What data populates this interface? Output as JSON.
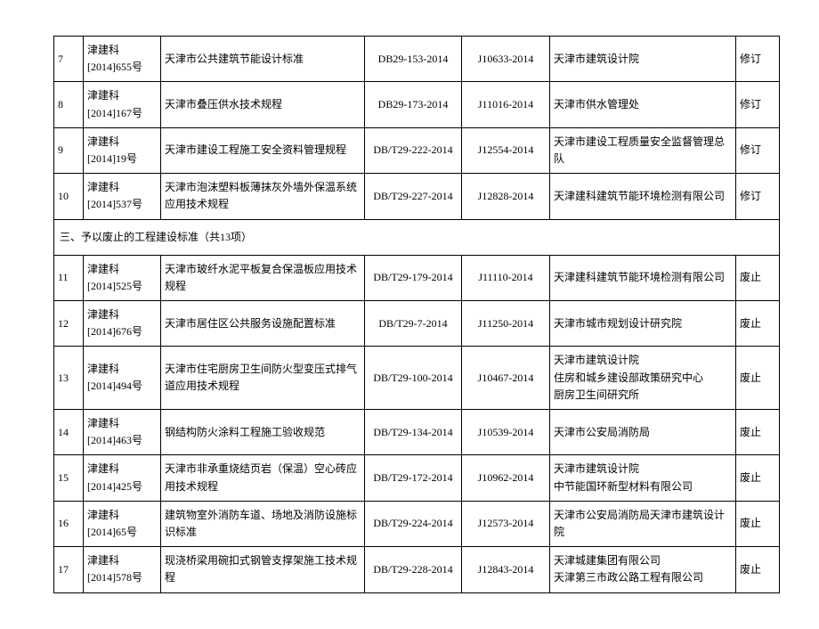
{
  "section_header": "三、予以废止的工程建设标准（共13项）",
  "rows_top": [
    {
      "idx": "7",
      "doc": "津建科[2014]655号",
      "title": "天津市公共建筑节能设计标准",
      "std1": "DB29-153-2014",
      "std2": "J10633-2014",
      "org": "天津市建筑设计院",
      "status": "修订"
    },
    {
      "idx": "8",
      "doc": "津建科[2014]167号",
      "title": "天津市叠压供水技术规程",
      "std1": "DB29-173-2014",
      "std2": "J11016-2014",
      "org": "天津市供水管理处",
      "status": "修订"
    },
    {
      "idx": "9",
      "doc": "津建科[2014]19号",
      "title": "天津市建设工程施工安全资料管理规程",
      "std1": "DB/T29-222-2014",
      "std2": "J12554-2014",
      "org": "天津市建设工程质量安全监督管理总队",
      "status": "修订"
    },
    {
      "idx": "10",
      "doc": "津建科[2014]537号",
      "title": "天津市泡沫塑料板薄抹灰外墙外保温系统应用技术规程",
      "std1": "DB/T29-227-2014",
      "std2": "J12828-2014",
      "org": "天津建科建筑节能环境检测有限公司",
      "status": "修订"
    }
  ],
  "rows_bottom": [
    {
      "idx": "11",
      "doc": "津建科[2014]525号",
      "title": "天津市玻纤水泥平板复合保温板应用技术规程",
      "std1": "DB/T29-179-2014",
      "std2": "J11110-2014",
      "org": "天津建科建筑节能环境检测有限公司",
      "status": "废止"
    },
    {
      "idx": "12",
      "doc": "津建科[2014]676号",
      "title": "天津市居住区公共服务设施配置标准",
      "std1": "DB/T29-7-2014",
      "std2": "J11250-2014",
      "org": "天津市城市规划设计研究院",
      "status": "废止"
    },
    {
      "idx": "13",
      "doc": "津建科[2014]494号",
      "title": "天津市住宅厨房卫生间防火型变压式排气道应用技术规程",
      "std1": "DB/T29-100-2014",
      "std2": "J10467-2014",
      "org": "天津市建筑设计院\n住房和城乡建设部政策研究中心\n厨房卫生间研究所",
      "status": "废止"
    },
    {
      "idx": "14",
      "doc": "津建科[2014]463号",
      "title": "钢结构防火涂料工程施工验收规范",
      "std1": "DB/T29-134-2014",
      "std2": "J10539-2014",
      "org": "天津市公安局消防局",
      "status": "废止"
    },
    {
      "idx": "15",
      "doc": "津建科[2014]425号",
      "title": "天津市非承重烧结页岩（保温）空心砖应用技术规程",
      "std1": "DB/T29-172-2014",
      "std2": "J10962-2014",
      "org": "天津市建筑设计院\n中节能国环新型材料有限公司",
      "status": "废止"
    },
    {
      "idx": "16",
      "doc": "津建科[2014]65号",
      "title": "建筑物室外消防车道、场地及消防设施标识标准",
      "std1": "DB/T29-224-2014",
      "std2": "J12573-2014",
      "org": "天津市公安局消防局天津市建筑设计院",
      "status": "废止"
    },
    {
      "idx": "17",
      "doc": "津建科[2014]578号",
      "title": "现浇桥梁用碗扣式钢管支撑架施工技术规程",
      "std1": "DB/T29-228-2014",
      "std2": "J12843-2014",
      "org": "天津城建集团有限公司\n天津第三市政公路工程有限公司",
      "status": "废止"
    }
  ]
}
